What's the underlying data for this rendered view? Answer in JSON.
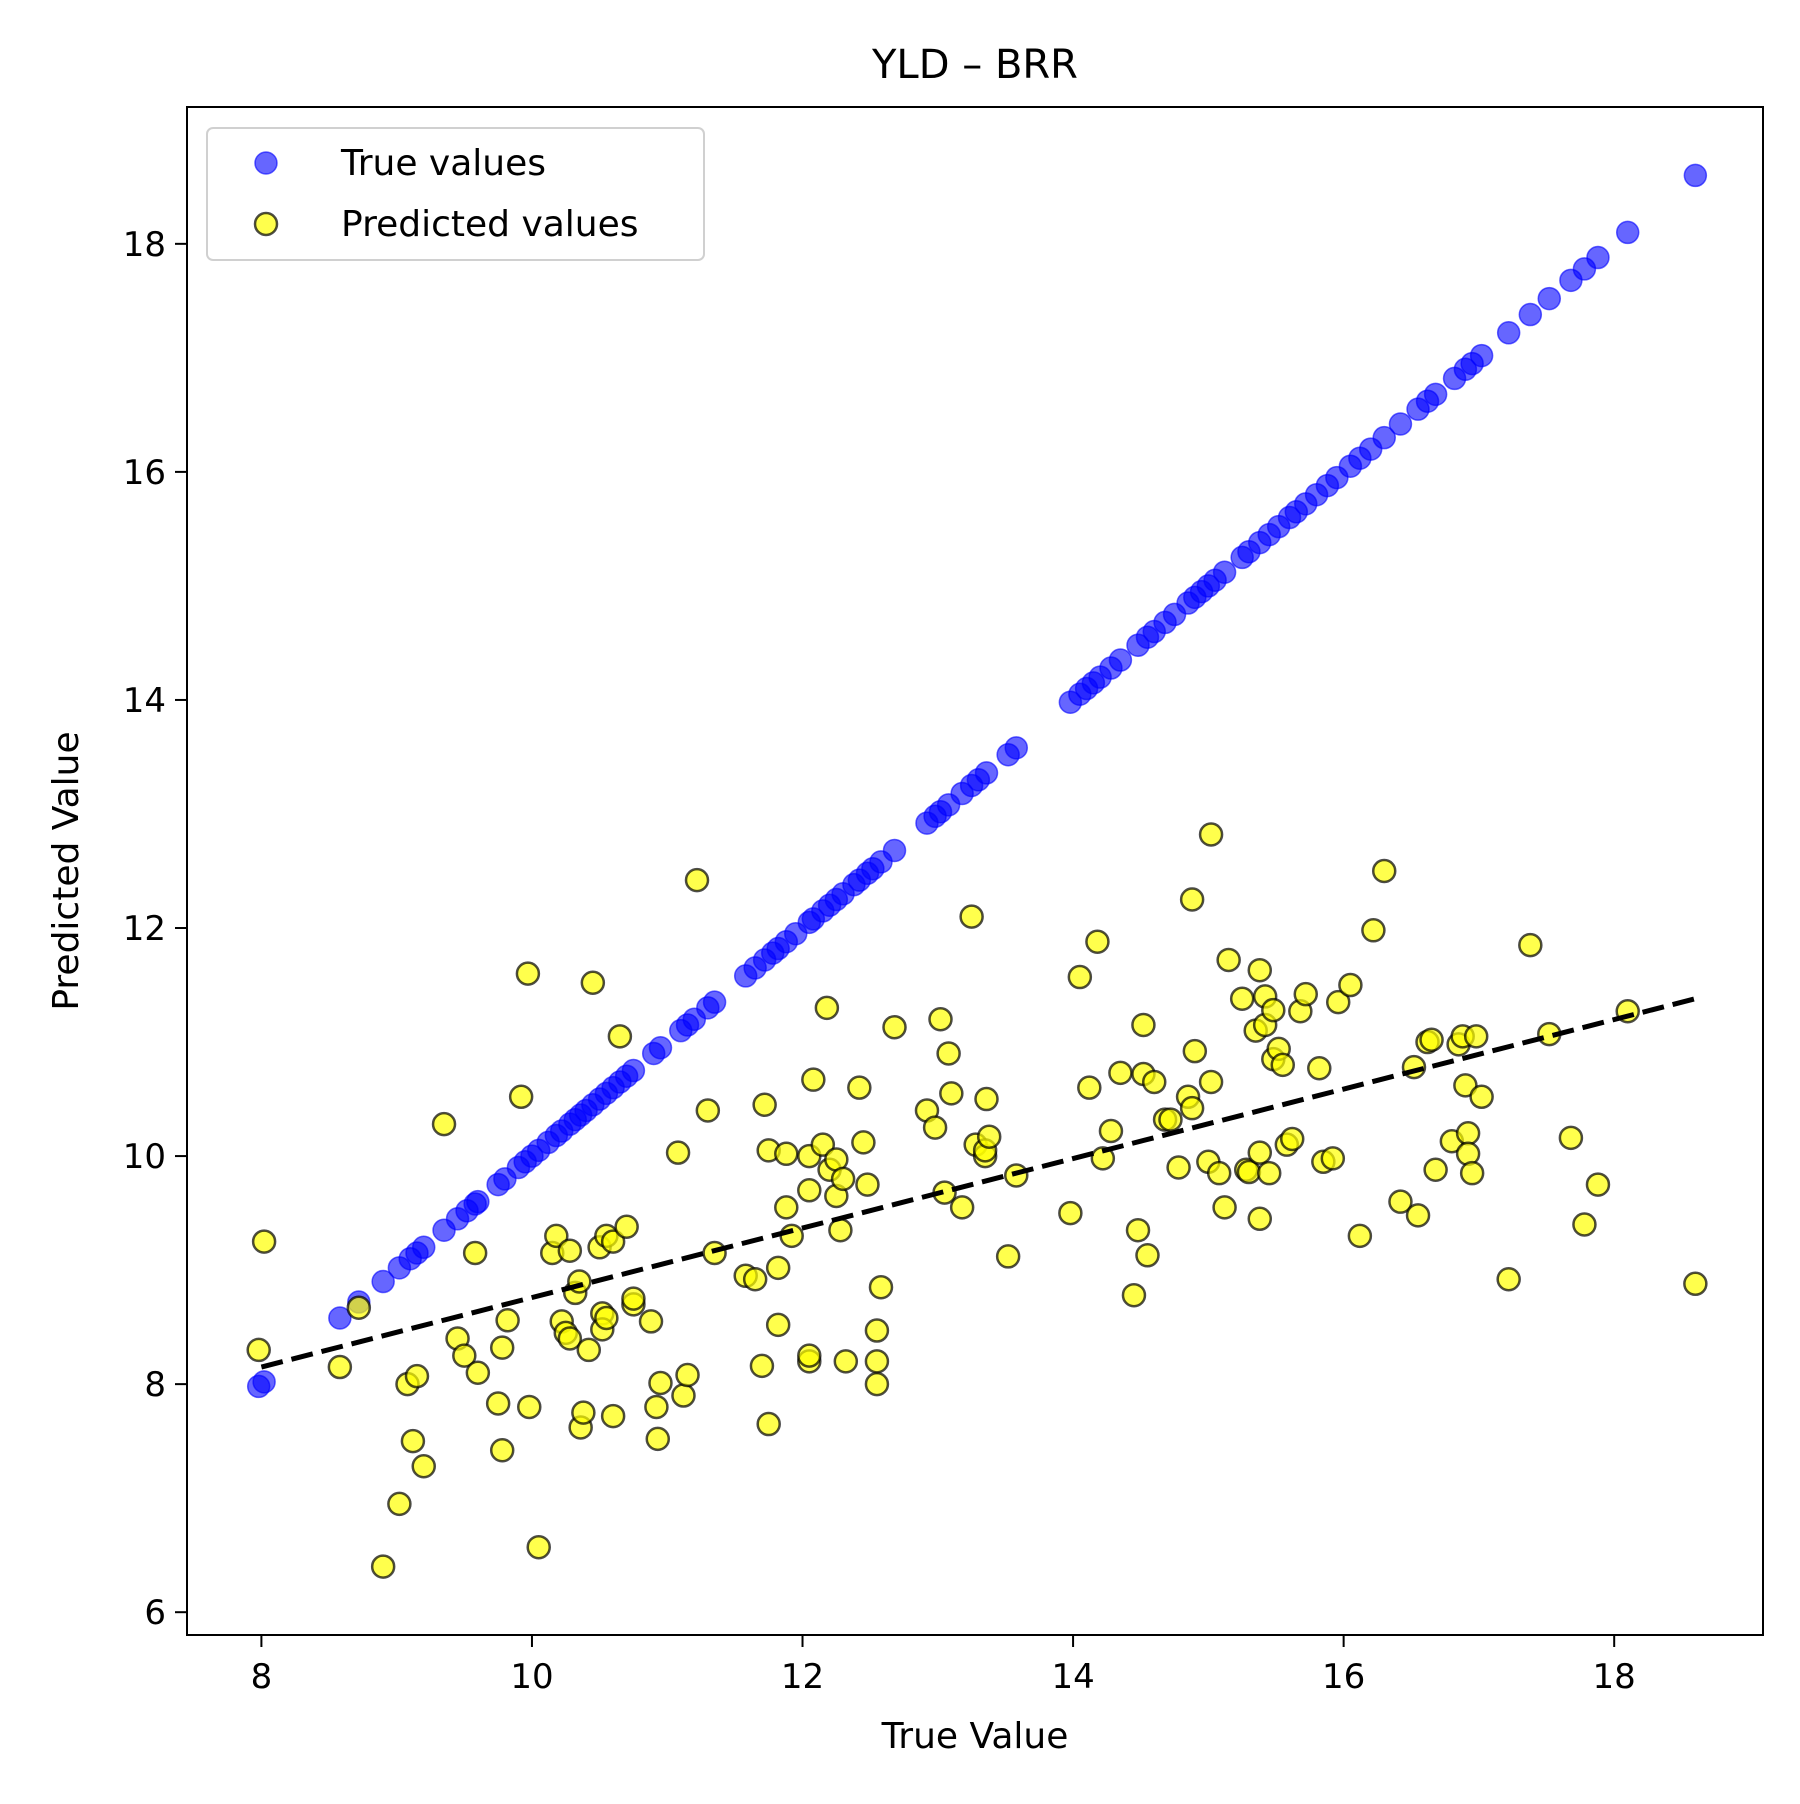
{
  "chart_data": {
    "type": "scatter",
    "title": "YLD – BRR",
    "xlabel": "True Value",
    "ylabel": "Predicted Value",
    "xlim": [
      7.45,
      19.1
    ],
    "ylim": [
      5.8,
      19.2
    ],
    "xticks": [
      8,
      10,
      12,
      14,
      16,
      18
    ],
    "yticks": [
      6,
      8,
      10,
      12,
      14,
      16,
      18
    ],
    "xtick_labels": [
      "8",
      "10",
      "12",
      "14",
      "16",
      "18"
    ],
    "ytick_labels": [
      "6",
      "8",
      "10",
      "12",
      "14",
      "16",
      "18"
    ],
    "grid": false,
    "legend_position": "top-left",
    "series": [
      {
        "name": "True values",
        "color": "#0000ff",
        "alpha": 0.6,
        "points": [
          [
            7.98,
            7.98
          ],
          [
            8.02,
            8.02
          ],
          [
            8.58,
            8.58
          ],
          [
            8.72,
            8.72
          ],
          [
            8.9,
            8.9
          ],
          [
            9.02,
            9.02
          ],
          [
            9.1,
            9.1
          ],
          [
            9.15,
            9.15
          ],
          [
            9.2,
            9.2
          ],
          [
            9.35,
            9.35
          ],
          [
            9.45,
            9.45
          ],
          [
            9.52,
            9.52
          ],
          [
            9.58,
            9.58
          ],
          [
            9.6,
            9.6
          ],
          [
            9.75,
            9.75
          ],
          [
            9.8,
            9.8
          ],
          [
            9.9,
            9.9
          ],
          [
            9.95,
            9.95
          ],
          [
            10.0,
            10.0
          ],
          [
            10.05,
            10.05
          ],
          [
            10.12,
            10.12
          ],
          [
            10.18,
            10.18
          ],
          [
            10.22,
            10.22
          ],
          [
            10.28,
            10.28
          ],
          [
            10.32,
            10.32
          ],
          [
            10.36,
            10.36
          ],
          [
            10.4,
            10.4
          ],
          [
            10.45,
            10.45
          ],
          [
            10.5,
            10.5
          ],
          [
            10.55,
            10.55
          ],
          [
            10.6,
            10.6
          ],
          [
            10.65,
            10.65
          ],
          [
            10.7,
            10.7
          ],
          [
            10.75,
            10.75
          ],
          [
            10.9,
            10.9
          ],
          [
            10.95,
            10.95
          ],
          [
            11.1,
            11.1
          ],
          [
            11.15,
            11.15
          ],
          [
            11.2,
            11.2
          ],
          [
            11.3,
            11.3
          ],
          [
            11.35,
            11.35
          ],
          [
            11.58,
            11.58
          ],
          [
            11.65,
            11.65
          ],
          [
            11.72,
            11.72
          ],
          [
            11.78,
            11.78
          ],
          [
            11.82,
            11.82
          ],
          [
            11.88,
            11.88
          ],
          [
            11.95,
            11.95
          ],
          [
            12.05,
            12.05
          ],
          [
            12.08,
            12.08
          ],
          [
            12.15,
            12.15
          ],
          [
            12.2,
            12.2
          ],
          [
            12.25,
            12.25
          ],
          [
            12.3,
            12.3
          ],
          [
            12.38,
            12.38
          ],
          [
            12.42,
            12.42
          ],
          [
            12.48,
            12.48
          ],
          [
            12.52,
            12.52
          ],
          [
            12.58,
            12.58
          ],
          [
            12.68,
            12.68
          ],
          [
            12.92,
            12.92
          ],
          [
            12.98,
            12.98
          ],
          [
            13.02,
            13.02
          ],
          [
            13.08,
            13.08
          ],
          [
            13.18,
            13.18
          ],
          [
            13.25,
            13.25
          ],
          [
            13.3,
            13.3
          ],
          [
            13.36,
            13.36
          ],
          [
            13.52,
            13.52
          ],
          [
            13.58,
            13.58
          ],
          [
            13.98,
            13.98
          ],
          [
            14.05,
            14.05
          ],
          [
            14.1,
            14.1
          ],
          [
            14.15,
            14.15
          ],
          [
            14.2,
            14.2
          ],
          [
            14.28,
            14.28
          ],
          [
            14.35,
            14.35
          ],
          [
            14.48,
            14.48
          ],
          [
            14.55,
            14.55
          ],
          [
            14.6,
            14.6
          ],
          [
            14.68,
            14.68
          ],
          [
            14.75,
            14.75
          ],
          [
            14.85,
            14.85
          ],
          [
            14.9,
            14.9
          ],
          [
            14.95,
            14.95
          ],
          [
            15.0,
            15.0
          ],
          [
            15.05,
            15.05
          ],
          [
            15.12,
            15.12
          ],
          [
            15.25,
            15.25
          ],
          [
            15.3,
            15.3
          ],
          [
            15.38,
            15.38
          ],
          [
            15.45,
            15.45
          ],
          [
            15.52,
            15.52
          ],
          [
            15.6,
            15.6
          ],
          [
            15.65,
            15.65
          ],
          [
            15.72,
            15.72
          ],
          [
            15.8,
            15.8
          ],
          [
            15.88,
            15.88
          ],
          [
            15.95,
            15.95
          ],
          [
            16.05,
            16.05
          ],
          [
            16.12,
            16.12
          ],
          [
            16.2,
            16.2
          ],
          [
            16.3,
            16.3
          ],
          [
            16.42,
            16.42
          ],
          [
            16.55,
            16.55
          ],
          [
            16.62,
            16.62
          ],
          [
            16.68,
            16.68
          ],
          [
            16.82,
            16.82
          ],
          [
            16.9,
            16.9
          ],
          [
            16.95,
            16.95
          ],
          [
            17.02,
            17.02
          ],
          [
            17.22,
            17.22
          ],
          [
            17.38,
            17.38
          ],
          [
            17.52,
            17.52
          ],
          [
            17.68,
            17.68
          ],
          [
            17.78,
            17.78
          ],
          [
            17.88,
            17.88
          ],
          [
            18.1,
            18.1
          ],
          [
            18.6,
            18.6
          ]
        ]
      },
      {
        "name": "Predicted values",
        "color": "#ffff00",
        "edgecolor": "#000000",
        "alpha": 0.7,
        "points": [
          [
            7.98,
            8.3
          ],
          [
            8.02,
            9.25
          ],
          [
            8.58,
            8.15
          ],
          [
            8.72,
            8.67
          ],
          [
            8.9,
            6.4
          ],
          [
            9.02,
            6.95
          ],
          [
            9.08,
            8.0
          ],
          [
            9.12,
            7.5
          ],
          [
            9.15,
            8.07
          ],
          [
            9.2,
            7.28
          ],
          [
            9.35,
            10.28
          ],
          [
            9.45,
            8.4
          ],
          [
            9.5,
            8.25
          ],
          [
            9.58,
            9.15
          ],
          [
            9.6,
            8.1
          ],
          [
            9.75,
            7.83
          ],
          [
            9.78,
            7.42
          ],
          [
            9.78,
            8.32
          ],
          [
            9.82,
            8.56
          ],
          [
            9.92,
            10.52
          ],
          [
            9.97,
            11.6
          ],
          [
            9.98,
            7.8
          ],
          [
            10.05,
            6.57
          ],
          [
            10.15,
            9.15
          ],
          [
            10.18,
            9.3
          ],
          [
            10.22,
            8.55
          ],
          [
            10.25,
            8.45
          ],
          [
            10.28,
            8.4
          ],
          [
            10.28,
            9.17
          ],
          [
            10.32,
            8.8
          ],
          [
            10.35,
            8.9
          ],
          [
            10.36,
            7.62
          ],
          [
            10.38,
            7.75
          ],
          [
            10.42,
            8.3
          ],
          [
            10.45,
            11.52
          ],
          [
            10.5,
            9.2
          ],
          [
            10.52,
            8.62
          ],
          [
            10.52,
            8.48
          ],
          [
            10.55,
            8.58
          ],
          [
            10.55,
            9.3
          ],
          [
            10.6,
            7.72
          ],
          [
            10.6,
            9.25
          ],
          [
            10.65,
            11.05
          ],
          [
            10.7,
            9.38
          ],
          [
            10.75,
            8.7
          ],
          [
            10.75,
            8.75
          ],
          [
            10.88,
            8.55
          ],
          [
            10.92,
            7.8
          ],
          [
            10.93,
            7.52
          ],
          [
            10.95,
            8.01
          ],
          [
            11.08,
            10.03
          ],
          [
            11.12,
            7.9
          ],
          [
            11.15,
            8.08
          ],
          [
            11.22,
            12.42
          ],
          [
            11.3,
            10.4
          ],
          [
            11.35,
            9.15
          ],
          [
            11.58,
            8.95
          ],
          [
            11.65,
            8.92
          ],
          [
            11.7,
            8.16
          ],
          [
            11.72,
            10.45
          ],
          [
            11.75,
            7.65
          ],
          [
            11.75,
            10.05
          ],
          [
            11.82,
            9.02
          ],
          [
            11.82,
            8.52
          ],
          [
            11.88,
            10.02
          ],
          [
            11.88,
            9.55
          ],
          [
            11.92,
            9.3
          ],
          [
            12.05,
            8.2
          ],
          [
            12.05,
            8.25
          ],
          [
            12.05,
            10.0
          ],
          [
            12.05,
            9.7
          ],
          [
            12.08,
            10.67
          ],
          [
            12.15,
            10.1
          ],
          [
            12.18,
            11.3
          ],
          [
            12.2,
            9.88
          ],
          [
            12.25,
            9.65
          ],
          [
            12.25,
            9.97
          ],
          [
            12.28,
            9.35
          ],
          [
            12.3,
            9.8
          ],
          [
            12.32,
            8.2
          ],
          [
            12.42,
            10.6
          ],
          [
            12.45,
            10.12
          ],
          [
            12.48,
            9.75
          ],
          [
            12.55,
            8.0
          ],
          [
            12.55,
            8.2
          ],
          [
            12.55,
            8.47
          ],
          [
            12.58,
            8.85
          ],
          [
            12.68,
            11.13
          ],
          [
            12.92,
            10.4
          ],
          [
            12.98,
            10.25
          ],
          [
            13.02,
            11.2
          ],
          [
            13.05,
            9.68
          ],
          [
            13.08,
            10.9
          ],
          [
            13.1,
            10.55
          ],
          [
            13.18,
            9.55
          ],
          [
            13.25,
            12.1
          ],
          [
            13.28,
            10.1
          ],
          [
            13.35,
            10.0
          ],
          [
            13.35,
            10.05
          ],
          [
            13.36,
            10.5
          ],
          [
            13.38,
            10.17
          ],
          [
            13.52,
            9.12
          ],
          [
            13.58,
            9.83
          ],
          [
            13.98,
            9.5
          ],
          [
            14.05,
            11.57
          ],
          [
            14.12,
            10.6
          ],
          [
            14.18,
            11.88
          ],
          [
            14.22,
            9.98
          ],
          [
            14.28,
            10.22
          ],
          [
            14.35,
            10.73
          ],
          [
            14.45,
            8.78
          ],
          [
            14.48,
            9.35
          ],
          [
            14.52,
            11.15
          ],
          [
            14.52,
            10.72
          ],
          [
            14.55,
            9.13
          ],
          [
            14.6,
            10.65
          ],
          [
            14.68,
            10.32
          ],
          [
            14.72,
            10.32
          ],
          [
            14.78,
            9.9
          ],
          [
            14.85,
            10.52
          ],
          [
            14.88,
            10.42
          ],
          [
            14.88,
            12.25
          ],
          [
            14.9,
            10.92
          ],
          [
            15.0,
            9.95
          ],
          [
            15.02,
            10.65
          ],
          [
            15.02,
            12.82
          ],
          [
            15.08,
            9.85
          ],
          [
            15.12,
            9.55
          ],
          [
            15.15,
            11.72
          ],
          [
            15.25,
            11.38
          ],
          [
            15.28,
            9.88
          ],
          [
            15.3,
            9.86
          ],
          [
            15.35,
            11.1
          ],
          [
            15.38,
            11.63
          ],
          [
            15.38,
            10.03
          ],
          [
            15.38,
            9.45
          ],
          [
            15.42,
            11.4
          ],
          [
            15.42,
            11.15
          ],
          [
            15.45,
            9.85
          ],
          [
            15.48,
            11.28
          ],
          [
            15.48,
            10.85
          ],
          [
            15.52,
            10.94
          ],
          [
            15.55,
            10.8
          ],
          [
            15.58,
            10.1
          ],
          [
            15.62,
            10.15
          ],
          [
            15.68,
            11.27
          ],
          [
            15.72,
            11.42
          ],
          [
            15.82,
            10.77
          ],
          [
            15.85,
            9.95
          ],
          [
            15.92,
            9.98
          ],
          [
            15.96,
            11.35
          ],
          [
            16.05,
            11.5
          ],
          [
            16.12,
            9.3
          ],
          [
            16.22,
            11.98
          ],
          [
            16.3,
            12.5
          ],
          [
            16.42,
            9.6
          ],
          [
            16.52,
            10.78
          ],
          [
            16.55,
            9.48
          ],
          [
            16.62,
            11.0
          ],
          [
            16.65,
            11.02
          ],
          [
            16.68,
            9.88
          ],
          [
            16.8,
            10.13
          ],
          [
            16.85,
            10.98
          ],
          [
            16.88,
            11.05
          ],
          [
            16.9,
            10.62
          ],
          [
            16.92,
            10.2
          ],
          [
            16.92,
            10.02
          ],
          [
            16.95,
            9.85
          ],
          [
            16.98,
            11.05
          ],
          [
            17.02,
            10.52
          ],
          [
            17.22,
            8.92
          ],
          [
            17.38,
            11.85
          ],
          [
            17.52,
            11.07
          ],
          [
            17.68,
            10.16
          ],
          [
            17.78,
            9.4
          ],
          [
            17.88,
            9.75
          ],
          [
            18.1,
            11.27
          ],
          [
            18.6,
            8.88
          ]
        ]
      }
    ],
    "trend_line": {
      "style": "dashed",
      "color": "#000000",
      "from": [
        8.0,
        8.15
      ],
      "to": [
        18.6,
        11.38
      ]
    }
  }
}
